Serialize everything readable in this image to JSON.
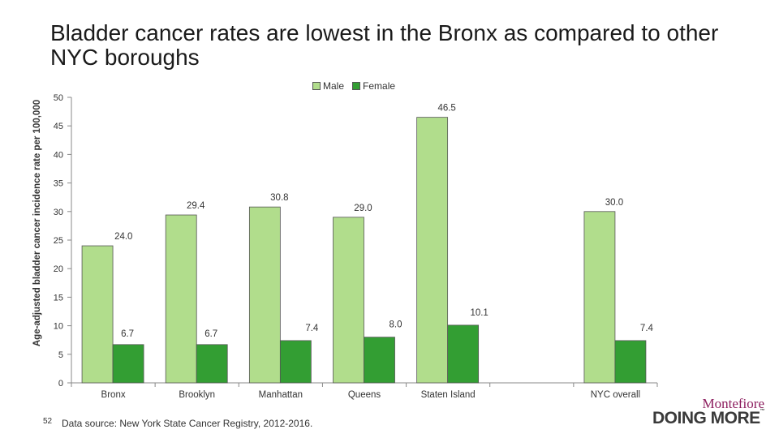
{
  "title": "Bladder cancer rates are lowest in the Bronx as compared to other NYC boroughs",
  "footer": {
    "page_number": "52",
    "source": "Data source: New York State Cancer Registry, 2012-2016."
  },
  "logo": {
    "top": "Montefiore",
    "bottom": "DOING MORE",
    "tm": "™"
  },
  "colors": {
    "male": "#b1dd8c",
    "female": "#339e33",
    "stroke": "#555555"
  },
  "chart_data": {
    "type": "bar",
    "categories": [
      "Bronx",
      "Brooklyn",
      "Manhattan",
      "Queens",
      "Staten Island",
      "",
      "NYC overall"
    ],
    "series": [
      {
        "name": "Male",
        "values": [
          24.0,
          29.4,
          30.8,
          29.0,
          46.5,
          null,
          30.0
        ],
        "labels": [
          "24.0",
          "29.4",
          "30.8",
          "29.0",
          "46.5",
          "",
          "30.0"
        ]
      },
      {
        "name": "Female",
        "values": [
          6.7,
          6.7,
          7.4,
          8.0,
          10.1,
          null,
          7.4
        ],
        "labels": [
          "6.7",
          "6.7",
          "7.4",
          "8.0",
          "10.1",
          "",
          "7.4"
        ]
      }
    ],
    "ylabel": "Age-adjusted bladder cancer incidence rate per 100,000",
    "xlabel": "",
    "ylim": [
      0,
      50
    ],
    "yticks": [
      "0",
      "5",
      "10",
      "15",
      "20",
      "25",
      "30",
      "35",
      "40",
      "45",
      "50"
    ],
    "grid": false,
    "legend": "top-center"
  }
}
